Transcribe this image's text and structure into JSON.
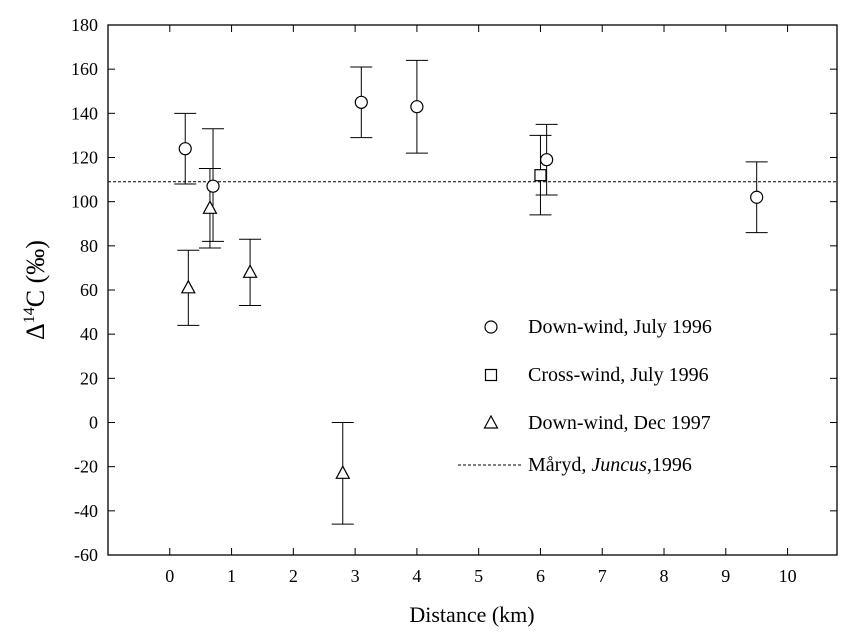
{
  "chart_data": {
    "type": "scatter",
    "xlabel": "Distance (km)",
    "ylabel": {
      "prefix": "Δ",
      "sup": "14",
      "suffix": "C (‰)"
    },
    "xlim": [
      -1,
      10.8
    ],
    "ylim": [
      -60,
      180
    ],
    "xticks": [
      0,
      1,
      2,
      3,
      4,
      5,
      6,
      7,
      8,
      9,
      10
    ],
    "yticks": [
      -60,
      -40,
      -20,
      0,
      20,
      40,
      60,
      80,
      100,
      120,
      140,
      160,
      180
    ],
    "grid": false,
    "legend_position": "center-right",
    "series": [
      {
        "name": "Down-wind, July 1996",
        "marker": "circle",
        "points": [
          {
            "x": 0.25,
            "y": 124,
            "ylow": 108,
            "yhigh": 140
          },
          {
            "x": 0.7,
            "y": 107,
            "ylow": 82,
            "yhigh": 133
          },
          {
            "x": 3.1,
            "y": 145,
            "ylow": 129,
            "yhigh": 161
          },
          {
            "x": 4.0,
            "y": 143,
            "ylow": 122,
            "yhigh": 164
          },
          {
            "x": 6.1,
            "y": 119,
            "ylow": 103,
            "yhigh": 135
          },
          {
            "x": 9.5,
            "y": 102,
            "ylow": 86,
            "yhigh": 118
          }
        ]
      },
      {
        "name": "Cross-wind, July 1996",
        "marker": "square",
        "points": [
          {
            "x": 6.0,
            "y": 112,
            "ylow": 94,
            "yhigh": 130
          }
        ]
      },
      {
        "name": "Down-wind, Dec 1997",
        "marker": "triangle",
        "points": [
          {
            "x": 0.3,
            "y": 61,
            "ylow": 44,
            "yhigh": 78
          },
          {
            "x": 0.65,
            "y": 97,
            "ylow": 79,
            "yhigh": 115
          },
          {
            "x": 1.3,
            "y": 68,
            "ylow": 53,
            "yhigh": 83
          },
          {
            "x": 2.8,
            "y": -23,
            "ylow": -46,
            "yhigh": 0
          }
        ]
      }
    ],
    "reference_line": {
      "label_pre": "Måryd, ",
      "label_italic": "Juncus",
      "label_post": ",1996",
      "y": 109,
      "style": "dashed"
    }
  }
}
